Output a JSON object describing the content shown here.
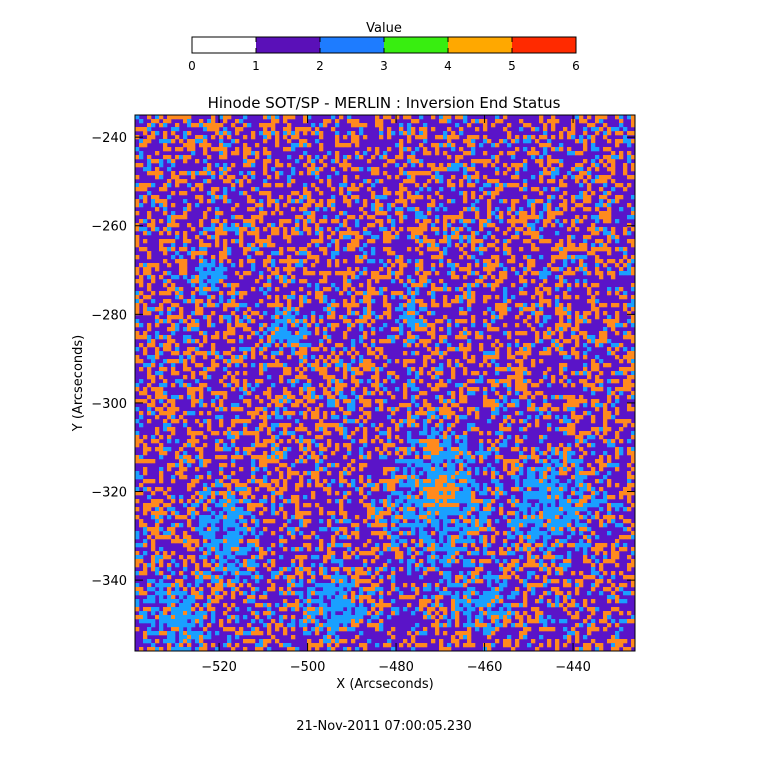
{
  "chart_data": {
    "type": "heatmap",
    "title": "Hinode SOT/SP - MERLIN : Inversion End Status",
    "xlabel": "X (Arcseconds)",
    "ylabel": "Y (Arcseconds)",
    "footer_timestamp": "21-Nov-2011 07:00:05.230",
    "xlim": [
      -539,
      -426
    ],
    "ylim": [
      -356,
      -235
    ],
    "x_ticks": [
      -520,
      -500,
      -480,
      -460,
      -440
    ],
    "y_ticks": [
      -240,
      -260,
      -280,
      -300,
      -320,
      -340
    ],
    "grid": false,
    "colorbar": {
      "title": "Value",
      "range": [
        0,
        6
      ],
      "ticks": [
        0,
        1,
        2,
        3,
        4,
        5,
        6
      ],
      "bins": [
        {
          "from": 0,
          "to": 1,
          "color": "#ffffff"
        },
        {
          "from": 1,
          "to": 2,
          "color": "#5a10b8"
        },
        {
          "from": 2,
          "to": 3,
          "color": "#1e7cff"
        },
        {
          "from": 3,
          "to": 4,
          "color": "#38ee10"
        },
        {
          "from": 4,
          "to": 5,
          "color": "#ffa800"
        },
        {
          "from": 5,
          "to": 6,
          "color": "#ff2a00"
        }
      ]
    },
    "map_colors": {
      "status_1": "#5a14c8",
      "status_2": "#1aa0ff",
      "status_4": "#ff8a1e"
    },
    "value_fractions": {
      "1": 0.48,
      "2": 0.22,
      "4": 0.3
    },
    "blue_regions": [
      {
        "x": -470,
        "y": -322,
        "rx": 14,
        "ry": 22
      },
      {
        "x": -530,
        "y": -348,
        "rx": 10,
        "ry": 10
      },
      {
        "x": -505,
        "y": -284,
        "rx": 7,
        "ry": 6
      },
      {
        "x": -478,
        "y": -282,
        "rx": 5,
        "ry": 8
      },
      {
        "x": -445,
        "y": -323,
        "rx": 12,
        "ry": 15
      },
      {
        "x": -518,
        "y": -330,
        "rx": 9,
        "ry": 14
      },
      {
        "x": -522,
        "y": -272,
        "rx": 6,
        "ry": 5
      },
      {
        "x": -495,
        "y": -345,
        "rx": 10,
        "ry": 9
      },
      {
        "x": -460,
        "y": -345,
        "rx": 8,
        "ry": 8
      }
    ],
    "orange_regions": [
      {
        "x": -470,
        "y": -320,
        "rx": 5,
        "ry": 5
      },
      {
        "x": -472,
        "y": -310,
        "rx": 3,
        "ry": 3
      }
    ]
  }
}
